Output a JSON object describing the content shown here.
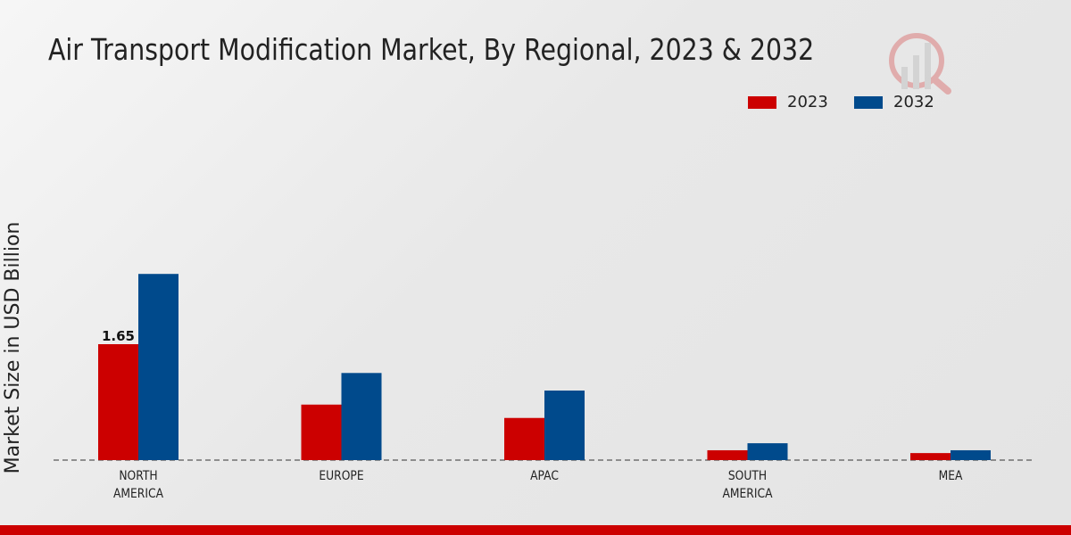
{
  "chart_data": {
    "type": "bar",
    "title": "Air Transport Modification Market, By Regional, 2023 & 2032",
    "ylabel": "Market Size in USD Billion",
    "xlabel": "",
    "categories": [
      "NORTH AMERICA",
      "EUROPE",
      "APAC",
      "SOUTH AMERICA",
      "MEA"
    ],
    "category_lines": [
      [
        "NORTH",
        "AMERICA"
      ],
      [
        "EUROPE"
      ],
      [
        "APAC"
      ],
      [
        "SOUTH",
        "AMERICA"
      ],
      [
        "MEA"
      ]
    ],
    "series": [
      {
        "name": "2023",
        "color": "#cc0000",
        "values": [
          1.65,
          0.79,
          0.6,
          0.14,
          0.1
        ]
      },
      {
        "name": "2032",
        "color": "#004a8c",
        "values": [
          2.65,
          1.24,
          0.99,
          0.24,
          0.14
        ]
      }
    ],
    "data_labels": [
      {
        "series": "2023",
        "category": "NORTH AMERICA",
        "text": "1.65"
      }
    ],
    "ylim": [
      0,
      3.5
    ],
    "grid": false,
    "legend_placement": "top-right"
  }
}
